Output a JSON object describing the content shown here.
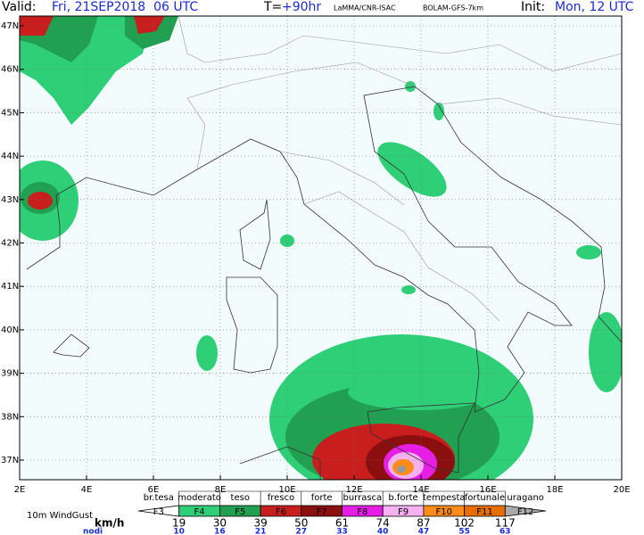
{
  "header": {
    "valid_label": "Valid:",
    "valid_time": "Fri, 21SEP2018  06 UTC",
    "lead_label": "T=",
    "lead_time": "+90hr",
    "source": "LaMMA/CNR-ISAC",
    "model": "BOLAM-GFS-7km",
    "init_label": "Init:",
    "init_time": "Mon, 12 UTC"
  },
  "map": {
    "lat_labels": [
      "47N",
      "46N",
      "45N",
      "44N",
      "43N",
      "42N",
      "41N",
      "40N",
      "39N",
      "38N",
      "37N"
    ],
    "lon_labels": [
      "2E",
      "4E",
      "6E",
      "8E",
      "10E",
      "12E",
      "14E",
      "16E",
      "18E",
      "20E"
    ]
  },
  "legend": {
    "title": "10m WindGust",
    "unit_kmh": "km/h",
    "unit_knots": "nodi",
    "classes": [
      {
        "description": "br.tesa",
        "force": "F3"
      },
      {
        "description": "moderato",
        "force": "F4"
      },
      {
        "description": "teso",
        "force": "F5"
      },
      {
        "description": "fresco",
        "force": "F6"
      },
      {
        "description": "forte",
        "force": "F7"
      },
      {
        "description": "burrasca",
        "force": "F8"
      },
      {
        "description": "b.forte",
        "force": "F9"
      },
      {
        "description": "tempesta",
        "force": "F10"
      },
      {
        "description": "fortunale",
        "force": "F11"
      },
      {
        "description": "uragano",
        "force": "F12"
      }
    ],
    "kmh": [
      "19",
      "30",
      "39",
      "50",
      "61",
      "74",
      "87",
      "102",
      "117"
    ],
    "knots": [
      "10",
      "16",
      "21",
      "27",
      "33",
      "40",
      "47",
      "55",
      "63"
    ]
  }
}
